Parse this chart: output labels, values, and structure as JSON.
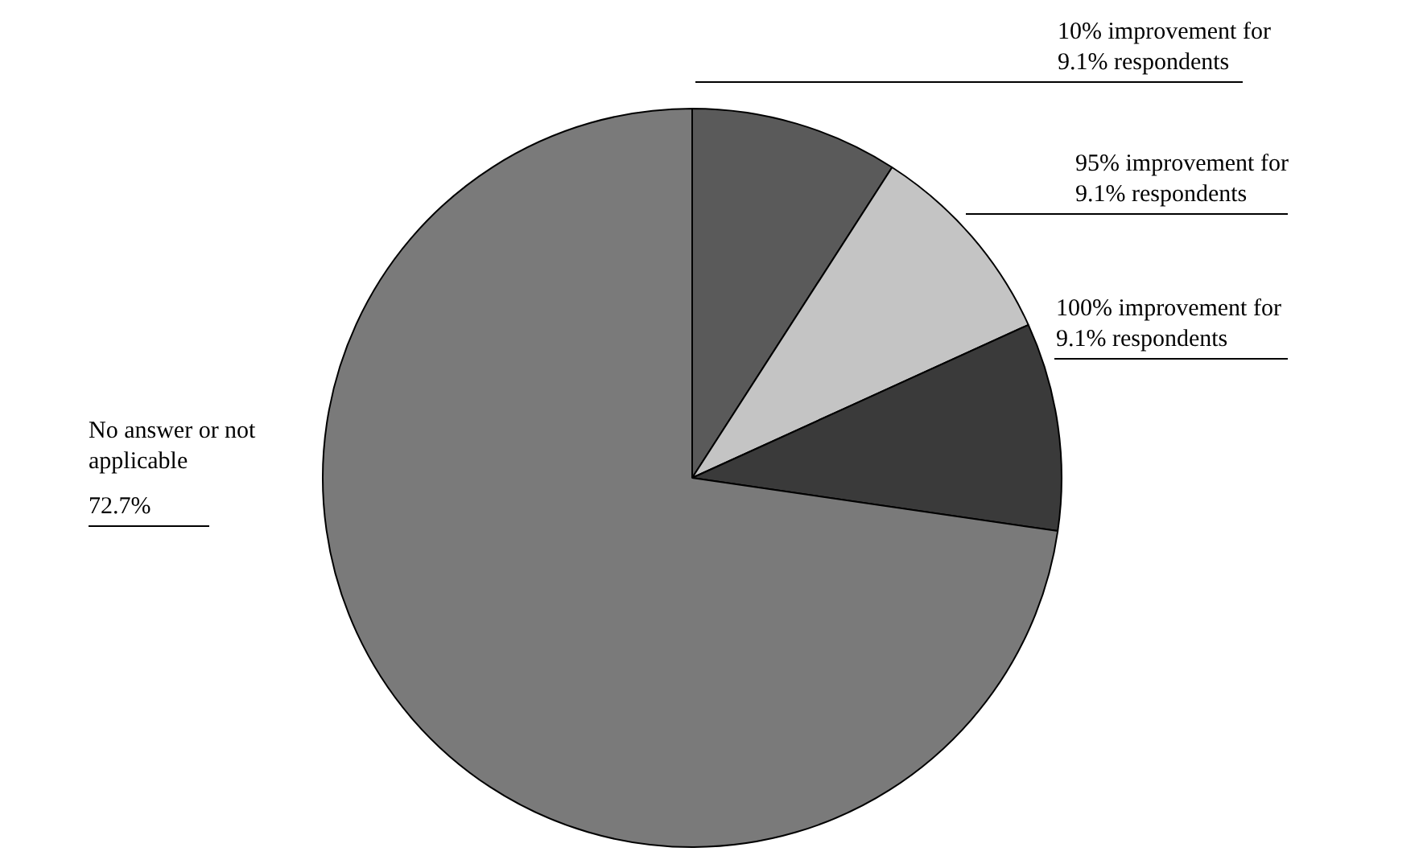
{
  "chart_data": {
    "type": "pie",
    "categories": [
      "10% improvement for 9.1% respondents",
      "95% improvement for 9.1% respondents",
      "100% improvement for 9.1% respondents",
      "No answer or not applicable"
    ],
    "values": [
      9.1,
      9.1,
      9.1,
      72.7
    ],
    "colors": [
      "#5a5a5a",
      "#c4c4c4",
      "#3a3a3a",
      "#7a7a7a"
    ],
    "value_labels": [
      null,
      null,
      null,
      "72.7%"
    ],
    "legend": false
  }
}
